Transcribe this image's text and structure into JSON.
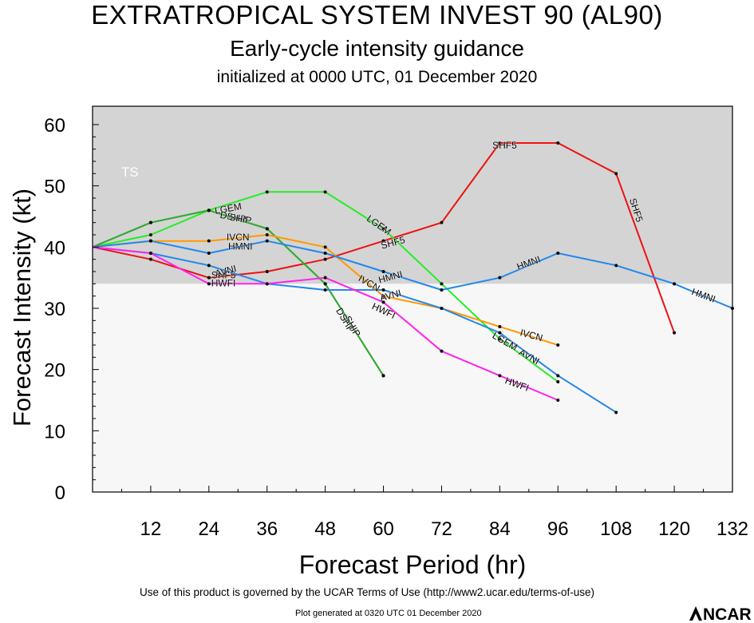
{
  "header": {
    "title": "EXTRATROPICAL SYSTEM INVEST 90 (AL90)",
    "subtitle": "Early-cycle intensity guidance",
    "init": "initialized at 0000 UTC, 01 December 2020"
  },
  "footer": {
    "terms": "Use of this product is governed by the UCAR Terms of Use (http://www2.ucar.edu/terms-of-use)",
    "generated": "Plot generated at 0320 UTC   01 December 2020",
    "logo_text": "NCAR"
  },
  "chart_data": {
    "type": "line",
    "xlabel": "Forecast Period (hr)",
    "ylabel": "Forecast Intensity (kt)",
    "xlim": [
      0,
      132
    ],
    "ylim": [
      0,
      63
    ],
    "xticks": [
      12,
      24,
      36,
      48,
      60,
      72,
      84,
      96,
      108,
      120,
      132
    ],
    "yticks": [
      0,
      10,
      20,
      30,
      40,
      50,
      60
    ],
    "regions": [
      {
        "label": "TS",
        "from": 34,
        "to": 63,
        "color": "#d4d4d4"
      },
      {
        "label": "",
        "from": 0,
        "to": 34,
        "color": "#f7f7f7"
      }
    ],
    "series": [
      {
        "name": "SHF5",
        "color": "#ee1111",
        "x": [
          0,
          12,
          24,
          36,
          48,
          60,
          72,
          84,
          96,
          108,
          120
        ],
        "values": [
          40,
          38,
          35,
          36,
          38,
          41,
          44,
          57,
          57,
          52,
          26
        ],
        "labels": [
          {
            "text": "SHF5",
            "x": 27,
            "y": 35.3,
            "rot": 0
          },
          {
            "text": "SHF5",
            "x": 62,
            "y": 40.6,
            "rot": -15
          },
          {
            "text": "SHF5",
            "x": 85,
            "y": 56.5,
            "rot": 0
          },
          {
            "text": "SHF5",
            "x": 112,
            "y": 46,
            "rot": 72
          }
        ]
      },
      {
        "name": "LGEM",
        "color": "#22ee22",
        "x": [
          0,
          12,
          24,
          36,
          48,
          60,
          72,
          84,
          96
        ],
        "values": [
          40,
          42,
          46,
          49,
          49,
          43,
          34,
          25,
          18
        ],
        "labels": [
          {
            "text": "LGEM",
            "x": 28,
            "y": 46.2,
            "rot": -10
          },
          {
            "text": "LGEM",
            "x": 59,
            "y": 43.5,
            "rot": 35
          },
          {
            "text": "LGEM",
            "x": 85,
            "y": 24.5,
            "rot": 30
          }
        ]
      },
      {
        "name": "DSHP",
        "color": "#33aa33",
        "x": [
          0,
          12,
          24,
          36,
          48,
          60
        ],
        "values": [
          40,
          44,
          46,
          43,
          34,
          19
        ],
        "labels": [
          {
            "text": "DSHP",
            "x": 29,
            "y": 44.8,
            "rot": 10
          },
          {
            "text": "DSHP",
            "x": 52,
            "y": 28,
            "rot": 60
          }
        ]
      },
      {
        "name": "SHIP",
        "color": "#33aa33",
        "x": [
          0,
          12,
          24,
          36,
          48,
          60
        ],
        "values": [
          40,
          44,
          46,
          43,
          34,
          19
        ],
        "labels": [
          {
            "text": "SHIP",
            "x": 30.5,
            "y": 44.5,
            "rot": 10
          },
          {
            "text": "SHIP",
            "x": 53.5,
            "y": 27,
            "rot": 60
          }
        ]
      },
      {
        "name": "IVCN",
        "color": "#ff9900",
        "x": [
          0,
          12,
          24,
          36,
          48,
          60,
          72,
          84,
          96
        ],
        "values": [
          40,
          41,
          41,
          42,
          40,
          32,
          30,
          27,
          24
        ],
        "labels": [
          {
            "text": "IVCN",
            "x": 30,
            "y": 41.5,
            "rot": 0
          },
          {
            "text": "IVCN",
            "x": 57,
            "y": 34,
            "rot": 30
          },
          {
            "text": "IVCN",
            "x": 90.5,
            "y": 25.5,
            "rot": 15
          }
        ]
      },
      {
        "name": "HMNI",
        "color": "#2288ee",
        "x": [
          0,
          12,
          24,
          36,
          48,
          60,
          72,
          84,
          96,
          108,
          120,
          132
        ],
        "values": [
          40,
          41,
          39,
          41,
          39,
          36,
          33,
          35,
          39,
          37,
          34,
          30
        ],
        "labels": [
          {
            "text": "HMNI",
            "x": 30.5,
            "y": 40,
            "rot": 0
          },
          {
            "text": "HMNI",
            "x": 61.5,
            "y": 35,
            "rot": -15
          },
          {
            "text": "HMNI",
            "x": 90,
            "y": 37.3,
            "rot": -20
          },
          {
            "text": "HMNI",
            "x": 126,
            "y": 32,
            "rot": 20
          }
        ]
      },
      {
        "name": "AVNI",
        "color": "#2288ee",
        "x": [
          0,
          12,
          24,
          36,
          48,
          60,
          72,
          84,
          96,
          108
        ],
        "values": [
          40,
          39,
          37,
          34,
          33,
          33,
          30,
          26,
          19,
          13
        ],
        "labels": [
          {
            "text": "AVNI",
            "x": 27.5,
            "y": 36,
            "rot": -15
          },
          {
            "text": "AVNI",
            "x": 61.5,
            "y": 32,
            "rot": -15
          },
          {
            "text": "AVNI",
            "x": 90,
            "y": 22,
            "rot": 30
          }
        ]
      },
      {
        "name": "HWFI",
        "color": "#ff22ee",
        "x": [
          0,
          12,
          24,
          36,
          48,
          60,
          72,
          84,
          96
        ],
        "values": [
          40,
          39,
          34,
          34,
          35,
          31,
          23,
          19,
          15
        ],
        "labels": [
          {
            "text": "HWFI",
            "x": 27,
            "y": 34,
            "rot": 0
          },
          {
            "text": "HWFI",
            "x": 60,
            "y": 29.5,
            "rot": 25
          },
          {
            "text": "HWFI",
            "x": 87.5,
            "y": 17.5,
            "rot": 20
          }
        ]
      }
    ]
  }
}
